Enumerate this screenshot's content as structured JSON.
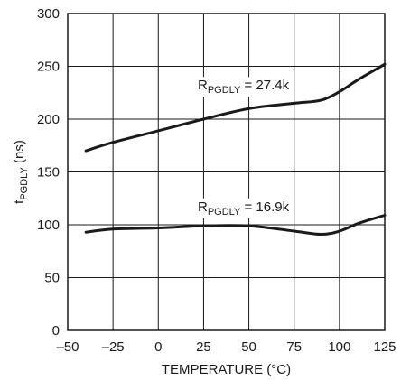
{
  "chart_data": {
    "type": "line",
    "xlabel": "TEMPERATURE (°C)",
    "ylabel": {
      "main": "t",
      "sub": "PGDLY",
      "suffix": " (ns)"
    },
    "xlim": [
      -50,
      125
    ],
    "ylim": [
      0,
      300
    ],
    "xticks": [
      -50,
      -25,
      0,
      25,
      50,
      75,
      100,
      125
    ],
    "xtick_labels": [
      "–50",
      "–25",
      "0",
      "25",
      "50",
      "75",
      "100",
      "125"
    ],
    "yticks": [
      0,
      50,
      100,
      150,
      200,
      250,
      300
    ],
    "ytick_labels": [
      "0",
      "50",
      "100",
      "150",
      "200",
      "250",
      "300"
    ],
    "grid": true,
    "series": [
      {
        "name": "RPGDLY = 27.4k",
        "label": {
          "main": "R",
          "sub": "PGDLY",
          "suffix": " = 27.4k"
        },
        "label_at": [
          47,
          228
        ],
        "x": [
          -40,
          -25,
          0,
          25,
          50,
          75,
          90,
          100,
          110,
          125
        ],
        "y": [
          170,
          178,
          189,
          200,
          210,
          215,
          218,
          226,
          237,
          252
        ]
      },
      {
        "name": "RPGDLY = 16.9k",
        "label": {
          "main": "R",
          "sub": "PGDLY",
          "suffix": " = 16.9k"
        },
        "label_at": [
          47,
          113
        ],
        "x": [
          -40,
          -25,
          0,
          25,
          50,
          75,
          90,
          100,
          110,
          125
        ],
        "y": [
          93,
          96,
          97,
          99,
          99,
          94,
          91,
          94,
          101,
          109
        ]
      }
    ]
  }
}
